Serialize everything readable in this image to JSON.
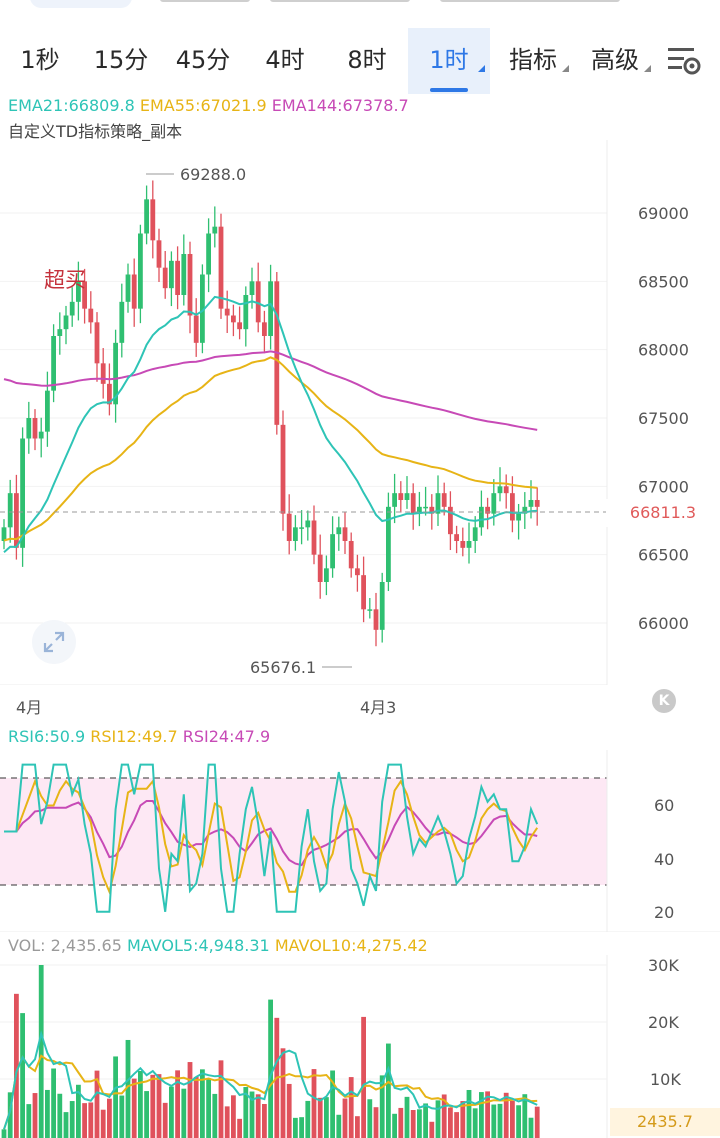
{
  "tabs": [
    {
      "label": "1秒",
      "active": false,
      "dropdown": false
    },
    {
      "label": "15分",
      "active": false,
      "dropdown": false
    },
    {
      "label": "45分",
      "active": false,
      "dropdown": false
    },
    {
      "label": "4时",
      "active": false,
      "dropdown": false
    },
    {
      "label": "8时",
      "active": false,
      "dropdown": false
    },
    {
      "label": "1时",
      "active": true,
      "dropdown": true
    },
    {
      "label": "指标",
      "active": false,
      "dropdown": true
    },
    {
      "label": "高级",
      "active": false,
      "dropdown": true
    }
  ],
  "settings_icon": "chart-settings-icon",
  "main_chart": {
    "ema_legend": [
      {
        "text": "EMA21:66809.8",
        "color": "#2ec4b6"
      },
      {
        "text": "EMA55:67021.9",
        "color": "#e7b416"
      },
      {
        "text": "EMA144:67378.7",
        "color": "#c74ab6"
      }
    ],
    "strategy_label": "自定义TD指标策略_副本",
    "high_label": "69288.0",
    "low_label": "65676.1",
    "overbought_label": "超买",
    "current_price": "66811.3",
    "y_ticks": [
      "69000",
      "68500",
      "68000",
      "67500",
      "67000",
      "66500",
      "66000"
    ],
    "x_ticks": [
      "4月",
      "4月3"
    ]
  },
  "rsi": {
    "legend": [
      {
        "text": "RSI6:50.9",
        "color": "#2ec4b6"
      },
      {
        "text": "RSI12:49.7",
        "color": "#e7b416"
      },
      {
        "text": "RSI24:47.9",
        "color": "#c74ab6"
      }
    ],
    "y_ticks": [
      "60",
      "40",
      "20"
    ]
  },
  "volume": {
    "legend": [
      {
        "text": "VOL: 2,435.65",
        "color": "#9a9a9a"
      },
      {
        "text": "MAVOL5:4,948.31",
        "color": "#2ec4b6"
      },
      {
        "text": "MAVOL10:4,275.42",
        "color": "#e7b416"
      }
    ],
    "y_ticks": [
      "30K",
      "20K",
      "10K"
    ],
    "current_volume": "2435.7"
  },
  "colors": {
    "up": "#2fbf71",
    "down": "#e0525c",
    "accent": "#2e78e6"
  }
}
